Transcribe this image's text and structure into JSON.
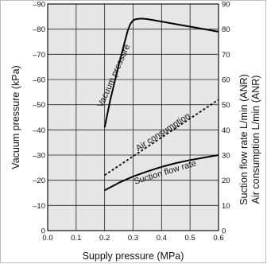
{
  "chart_data": {
    "type": "line",
    "xlabel": "Supply pressure (MPa)",
    "ylabel_left": "Vacuum pressure (kPa)",
    "ylabel_right_1": "Suction flow rate  L/min (ANR)",
    "ylabel_right_2": "Air consumption  L/min (ANR)",
    "xlim": [
      0.0,
      0.6
    ],
    "ylim_left": [
      0,
      -90
    ],
    "ylim_right": [
      0,
      90
    ],
    "x_ticks": [
      "0.0",
      "0.1",
      "0.2",
      "0.3",
      "0.4",
      "0.5",
      "0.6"
    ],
    "y_left_ticks": [
      "0",
      "–10",
      "–20",
      "–30",
      "–40",
      "–50",
      "–60",
      "–70",
      "–80",
      "–90"
    ],
    "y_right_ticks": [
      "0",
      "10",
      "20",
      "30",
      "40",
      "50",
      "60",
      "70",
      "80",
      "90"
    ],
    "grid": true,
    "background": "#e6e6e6",
    "series": [
      {
        "name": "Vacuum pressure",
        "axis": "left",
        "style": "solid",
        "x": [
          0.2,
          0.22,
          0.25,
          0.28,
          0.29,
          0.3,
          0.31,
          0.33,
          0.35,
          0.4,
          0.45,
          0.5,
          0.55,
          0.6
        ],
        "y": [
          -41,
          -52,
          -66,
          -79,
          -82,
          -83.5,
          -84,
          -84.2,
          -84,
          -83,
          -82,
          -81,
          -80,
          -79
        ]
      },
      {
        "name": "Air consumption",
        "axis": "right",
        "style": "dashed",
        "x": [
          0.2,
          0.6
        ],
        "y": [
          22,
          52
        ]
      },
      {
        "name": "Suction flow rate",
        "axis": "right",
        "style": "solid",
        "x": [
          0.2,
          0.25,
          0.3,
          0.35,
          0.4,
          0.45,
          0.5,
          0.55,
          0.6
        ],
        "y": [
          16,
          19,
          21.5,
          23.5,
          25.3,
          26.8,
          28,
          29,
          30
        ]
      }
    ]
  }
}
